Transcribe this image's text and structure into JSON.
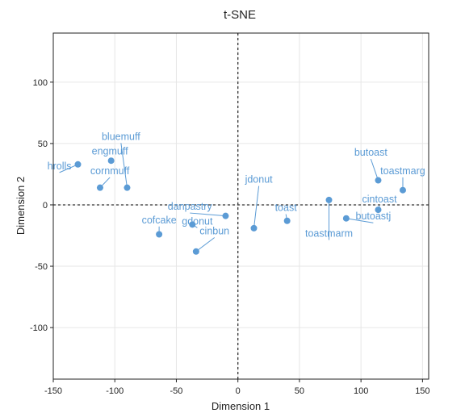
{
  "chart_data": {
    "type": "scatter",
    "title": "t-SNE",
    "xlabel": "Dimension 1",
    "ylabel": "Dimension 2",
    "xlim": [
      -150,
      155
    ],
    "ylim": [
      -142,
      140
    ],
    "xticks": [
      -150,
      -100,
      -50,
      0,
      50,
      100,
      150
    ],
    "yticks": [
      -100,
      -50,
      0,
      50,
      100
    ],
    "grid": true,
    "reference_lines": {
      "x": 0,
      "y": 0,
      "style": "dashed"
    },
    "point_color": "#5b9bd5",
    "points": [
      {
        "label": "hrolls",
        "x": -130,
        "y": 33,
        "lx": -145,
        "ly": 29
      },
      {
        "label": "engmuff",
        "x": -103,
        "y": 36,
        "lx": -104,
        "ly": 41
      },
      {
        "label": "bluemuff",
        "x": -90,
        "y": 14,
        "lx": -95,
        "ly": 53
      },
      {
        "label": "cornmuff",
        "x": -112,
        "y": 14,
        "lx": -104,
        "ly": 25
      },
      {
        "label": "cofcake",
        "x": -64,
        "y": -24,
        "lx": -64,
        "ly": -15
      },
      {
        "label": "danpastry",
        "x": -10,
        "y": -9,
        "lx": -39,
        "ly": -4
      },
      {
        "label": "gdonut",
        "x": -37,
        "y": -16,
        "lx": -33,
        "ly": -16
      },
      {
        "label": "cinbun",
        "x": -34,
        "y": -38,
        "lx": -19,
        "ly": -24
      },
      {
        "label": "jdonut",
        "x": 13,
        "y": -19,
        "lx": 17,
        "ly": 18
      },
      {
        "label": "toast",
        "x": 40,
        "y": -13,
        "lx": 39,
        "ly": -5
      },
      {
        "label": "toastmarm",
        "x": 74,
        "y": 4,
        "lx": 74,
        "ly": -26
      },
      {
        "label": "cintoast",
        "x": 114,
        "y": -4,
        "lx": 115,
        "ly": 2
      },
      {
        "label": "butoastj",
        "x": 88,
        "y": -11,
        "lx": 110,
        "ly": -12
      },
      {
        "label": "butoast",
        "x": 114,
        "y": 20,
        "lx": 108,
        "ly": 40
      },
      {
        "label": "toastmarg",
        "x": 134,
        "y": 12,
        "lx": 134,
        "ly": 25
      }
    ]
  }
}
